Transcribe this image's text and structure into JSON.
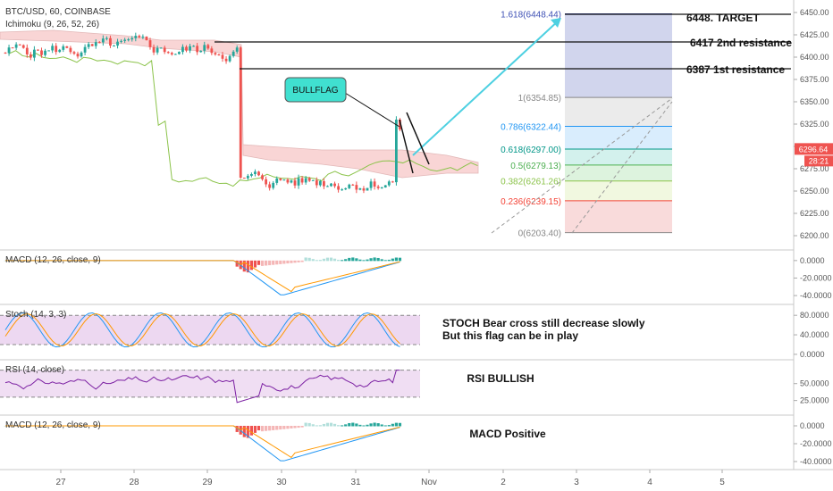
{
  "header": {
    "symbol": "BTC/USD, 60, COINBASE",
    "indicator": "Ichimoku (9, 26, 52, 26)"
  },
  "colors": {
    "up": "#26a69a",
    "down": "#ef5350",
    "cloud": "#f8c8c8",
    "ichimoku_line": "#8bc34a",
    "macd_line": "#2196f3",
    "signal_line": "#ff9800",
    "stoch_fill": "#e1bee7",
    "rsi_line": "#7b1fa2",
    "arrow": "#4dd0e1",
    "price_badge": "#ef5350",
    "annotation_fill": "#40e0d0"
  },
  "chart_data": {
    "type": "candlestick",
    "x_tick_labels": [
      "27",
      "28",
      "29",
      "30",
      "31",
      "Nov",
      "2",
      "3",
      "4",
      "5"
    ],
    "price_axis": {
      "ylim": [
        6190,
        6460
      ],
      "ticks": [
        "6450.00",
        "6425.00",
        "6400.00",
        "6375.00",
        "6350.00",
        "6325.00",
        "6300.00",
        "6275.00",
        "6250.00",
        "6225.00",
        "6200.00"
      ]
    },
    "last_price": "6296.64",
    "countdown": "28:21",
    "fibonacci": [
      {
        "label": "1.618(6448.44)",
        "value": 6448.44,
        "color": "#3f51b5",
        "fill": "#c5cae9"
      },
      {
        "label": "1(6354.85)",
        "value": 6354.85,
        "color": "#888888",
        "fill": "#e6e6e6"
      },
      {
        "label": "0.786(6322.44)",
        "value": 6322.44,
        "color": "#2196f3",
        "fill": "#cfe8fc"
      },
      {
        "label": "0.618(6297.00)",
        "value": 6297.0,
        "color": "#009688",
        "fill": "#c8ede9"
      },
      {
        "label": "0.5(6279.13)",
        "value": 6279.13,
        "color": "#4caf50",
        "fill": "#d5f0d6"
      },
      {
        "label": "0.382(6261.26)",
        "value": 6261.26,
        "color": "#8bc34a",
        "fill": "#eef6d8"
      },
      {
        "label": "0.236(6239.15)",
        "value": 6239.15,
        "color": "#f44336",
        "fill": "#f7d2d2"
      },
      {
        "label": "0(6203.40)",
        "value": 6203.4,
        "color": "#888888",
        "fill": "#f7d2d2"
      }
    ],
    "levels": [
      {
        "label": "6448. TARGET",
        "value": 6448
      },
      {
        "label": "6417 2nd resistance",
        "value": 6417
      },
      {
        "label": "6387 1st resistance",
        "value": 6387
      }
    ],
    "callout": "BULLFLAG",
    "panes": [
      {
        "title": "MACD (12, 26, close, 9)",
        "ticks": [
          "0.0000",
          "-20.0000",
          "-40.0000"
        ],
        "ylim": [
          -45,
          8
        ],
        "note": ""
      },
      {
        "title": "Stoch (14, 3, 3)",
        "ticks": [
          "80.0000",
          "40.0000",
          "0.0000"
        ],
        "ylim": [
          -2,
          95
        ],
        "note": "STOCH Bear cross still decrease slowly\nBut this flag can be in play"
      },
      {
        "title": "RSI (14, close)",
        "ticks": [
          "50.0000",
          "25.0000"
        ],
        "ylim": [
          10,
          80
        ],
        "note": "RSI BULLISH"
      },
      {
        "title": "MACD (12, 26, close, 9)",
        "ticks": [
          "0.0000",
          "-20.0000",
          "-40.0000"
        ],
        "ylim": [
          -45,
          8
        ],
        "note": "MACD Positive"
      }
    ]
  }
}
